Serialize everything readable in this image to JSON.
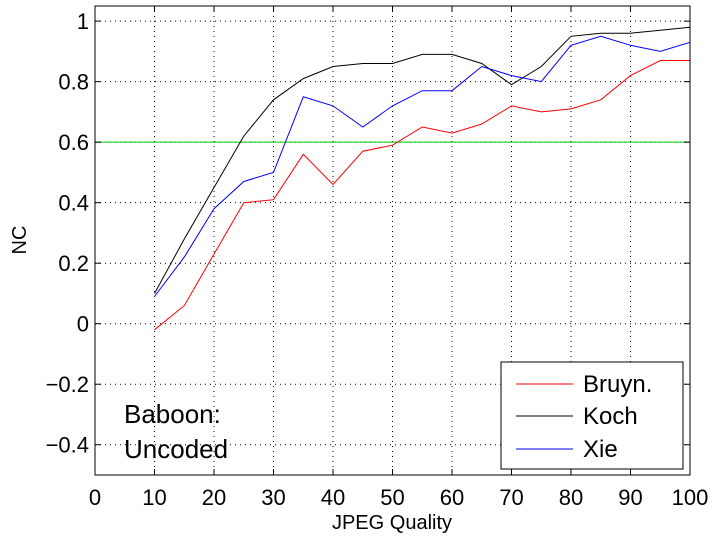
{
  "chart_data": {
    "type": "line",
    "title": "",
    "xlabel": "JPEG Quality",
    "ylabel": "NC",
    "xlim": [
      0,
      100
    ],
    "ylim": [
      -0.5,
      1.05
    ],
    "xticks": [
      0,
      10,
      20,
      30,
      40,
      50,
      60,
      70,
      80,
      90,
      100
    ],
    "yticks": [
      -0.4,
      -0.2,
      0,
      0.2,
      0.4,
      0.6,
      0.8,
      1
    ],
    "ytick_labels": [
      "−0.4",
      "−0.2",
      "0",
      "0.2",
      "0.4",
      "0.6",
      "0.8",
      "1"
    ],
    "grid": true,
    "legend_position": "bottom-right",
    "reference_line": {
      "y": 0.6,
      "color": "#00cc00"
    },
    "annotation": [
      "Baboon:",
      "Uncoded"
    ],
    "x": [
      10,
      15,
      20,
      25,
      30,
      35,
      40,
      45,
      50,
      55,
      60,
      65,
      70,
      75,
      80,
      85,
      90,
      95,
      100
    ],
    "series": [
      {
        "name": "Bruyn.",
        "color": "#ff0000",
        "values": [
          -0.02,
          0.06,
          0.23,
          0.4,
          0.41,
          0.56,
          0.46,
          0.57,
          0.59,
          0.65,
          0.63,
          0.66,
          0.72,
          0.7,
          0.71,
          0.74,
          0.82,
          0.87,
          0.87
        ]
      },
      {
        "name": "Koch",
        "color": "#000000",
        "values": [
          0.1,
          0.28,
          0.45,
          0.62,
          0.74,
          0.81,
          0.85,
          0.86,
          0.86,
          0.89,
          0.89,
          0.86,
          0.79,
          0.85,
          0.95,
          0.96,
          0.96,
          0.97,
          0.98
        ]
      },
      {
        "name": "Xie",
        "color": "#0000ff",
        "values": [
          0.09,
          0.22,
          0.38,
          0.47,
          0.5,
          0.75,
          0.72,
          0.65,
          0.72,
          0.77,
          0.77,
          0.85,
          0.82,
          0.8,
          0.92,
          0.95,
          0.92,
          0.9,
          0.93
        ]
      }
    ]
  }
}
